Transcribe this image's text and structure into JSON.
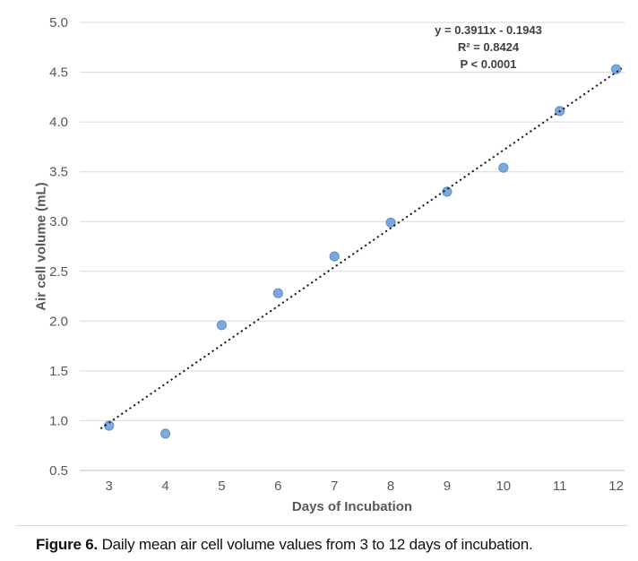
{
  "chart_data": {
    "type": "scatter",
    "title": "",
    "xlabel": "Days of Incubation",
    "ylabel": "Air cell volume (mL)",
    "x": [
      3,
      4,
      5,
      6,
      7,
      8,
      9,
      10,
      11,
      12
    ],
    "y": [
      0.95,
      0.87,
      1.96,
      2.28,
      2.65,
      2.99,
      3.3,
      3.54,
      4.11,
      4.53
    ],
    "xticks": [
      3,
      4,
      5,
      6,
      7,
      8,
      9,
      10,
      11,
      12
    ],
    "yticks": [
      0.5,
      1.0,
      1.5,
      2.0,
      2.5,
      3.0,
      3.5,
      4.0,
      4.5,
      5.0
    ],
    "xlim": [
      2.48,
      12.15
    ],
    "ylim": [
      0.5,
      5.0
    ],
    "grid": "horizontal-only",
    "legend": "none",
    "trendline": {
      "slope": 0.3911,
      "intercept": -0.1943,
      "x_start": 2.85,
      "x_end": 12.1,
      "style": "dotted",
      "color": "#1f1f1f"
    },
    "annotation": {
      "equation": "y = 0.3911x - 0.1943",
      "r_squared": "R² = 0.8424",
      "p_value": "P < 0.0001"
    },
    "colors": {
      "marker_fill": "#7fa9dc",
      "marker_stroke": "#6396ce",
      "gridline": "#d9d9d9",
      "axis_line": "#bfbfbf",
      "tick_label": "#595959",
      "axis_title": "#595959",
      "annotation_text": "#3f3f3f"
    }
  },
  "caption": {
    "label": "Figure 6.",
    "text": " Daily mean air cell volume values from 3 to 12 days of incubation."
  }
}
